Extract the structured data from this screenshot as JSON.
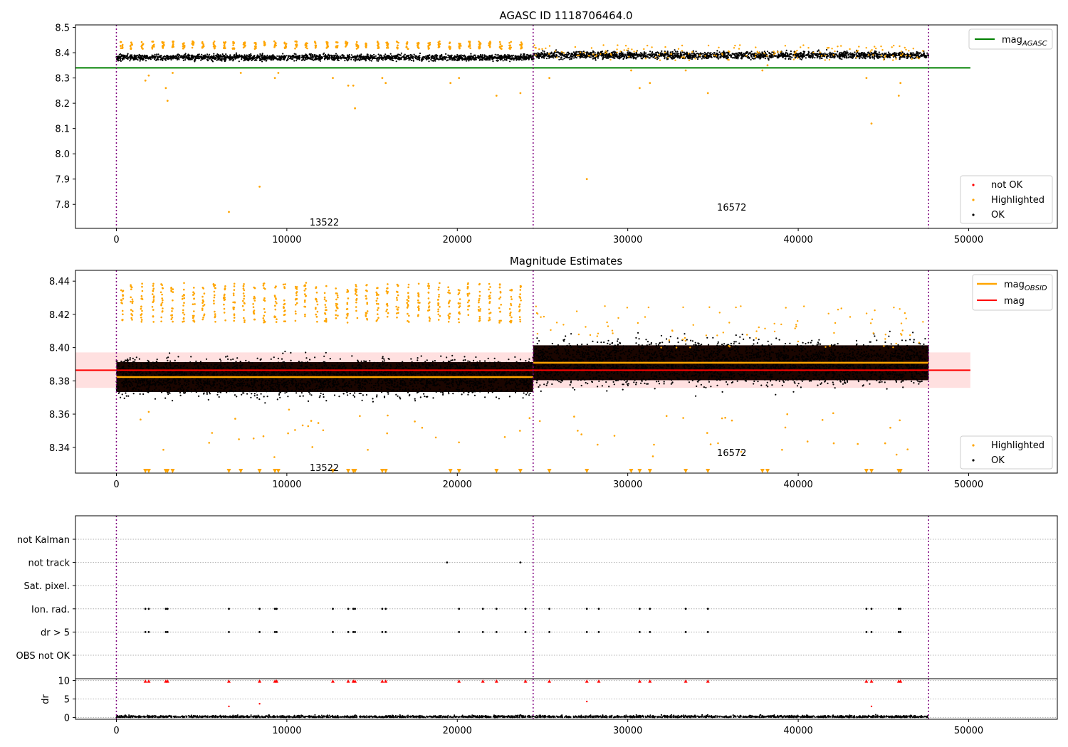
{
  "chart_data": [
    {
      "type": "scatter",
      "title": "AGASC ID 1118706464.0",
      "xlim": [
        -2400,
        55200
      ],
      "ylim": [
        7.705,
        8.51
      ],
      "xticks": [
        0,
        10000,
        20000,
        30000,
        40000,
        50000
      ],
      "yticks": [
        7.8,
        7.9,
        8.0,
        8.1,
        8.2,
        8.3,
        8.4,
        8.5
      ],
      "grid": false,
      "obs_boundaries": [
        0,
        24450,
        47650
      ],
      "obs_labels": [
        {
          "text": "13522",
          "x": 12200,
          "y": 7.73
        },
        {
          "text": "16572",
          "x": 36100,
          "y": 7.79
        }
      ],
      "hlines": [
        {
          "name": "mag_AGASC",
          "y": 8.34,
          "x0": -2400,
          "x1": 50100,
          "color": "#008000"
        }
      ],
      "series": [
        {
          "name": "OK",
          "color": "#000000",
          "bands": [
            {
              "x0": 0,
              "x1": 24450,
              "center": 8.381,
              "halfwidth": 0.017
            },
            {
              "x0": 24450,
              "x1": 47650,
              "center": 8.39,
              "halfwidth": 0.02
            }
          ]
        },
        {
          "name": "Highlighted",
          "color": "#ffa500",
          "top_clusters_y": 8.43,
          "outliers": [
            [
              1700,
              8.29
            ],
            [
              1900,
              8.31
            ],
            [
              2900,
              8.26
            ],
            [
              3000,
              8.21
            ],
            [
              3300,
              8.32
            ],
            [
              6600,
              7.77
            ],
            [
              7300,
              8.32
            ],
            [
              8400,
              7.87
            ],
            [
              9300,
              8.3
            ],
            [
              9500,
              8.32
            ],
            [
              12700,
              8.3
            ],
            [
              13600,
              8.27
            ],
            [
              13900,
              8.27
            ],
            [
              14000,
              8.18
            ],
            [
              15600,
              8.3
            ],
            [
              15800,
              8.28
            ],
            [
              19600,
              8.28
            ],
            [
              20100,
              8.3
            ],
            [
              22300,
              8.23
            ],
            [
              23700,
              8.24
            ],
            [
              25400,
              8.3
            ],
            [
              27600,
              7.9
            ],
            [
              30200,
              8.33
            ],
            [
              30700,
              8.26
            ],
            [
              31300,
              8.28
            ],
            [
              33400,
              8.33
            ],
            [
              34700,
              8.24
            ],
            [
              37900,
              8.33
            ],
            [
              38200,
              8.35
            ],
            [
              44000,
              8.3
            ],
            [
              44300,
              8.12
            ],
            [
              45900,
              8.23
            ],
            [
              46000,
              8.28
            ]
          ]
        },
        {
          "name": "not OK",
          "color": "#ff0000",
          "points": []
        }
      ],
      "legends": [
        {
          "entries": [
            "mag_AGASC"
          ],
          "placement": "upper-right"
        },
        {
          "entries": [
            "not OK",
            "Highlighted",
            "OK"
          ],
          "placement": "lower-right"
        }
      ]
    },
    {
      "type": "scatter",
      "title": "Magnitude Estimates",
      "xlim": [
        -2400,
        55200
      ],
      "ylim": [
        8.3245,
        8.4465
      ],
      "xticks": [
        0,
        10000,
        20000,
        30000,
        40000,
        50000
      ],
      "yticks": [
        8.34,
        8.36,
        8.38,
        8.4,
        8.42,
        8.44
      ],
      "grid": false,
      "obs_boundaries": [
        0,
        24450,
        47650
      ],
      "obs_labels": [
        {
          "text": "13522",
          "x": 12200,
          "y": 8.328
        },
        {
          "text": "16572",
          "x": 36100,
          "y": 8.337
        }
      ],
      "hlines": [
        {
          "name": "mag_OBSID",
          "y": 8.3823,
          "x0": 0,
          "x1": 24450,
          "color": "#ffa500"
        },
        {
          "name": "mag_OBSID",
          "y": 8.3909,
          "x0": 24450,
          "x1": 47650,
          "color": "#ffa500"
        },
        {
          "name": "mag",
          "y": 8.3864,
          "x0": -2400,
          "x1": 50100,
          "color": "#ff0000",
          "band": [
            8.3758,
            8.3971
          ]
        }
      ],
      "series": [
        {
          "name": "OK",
          "color": "#000000",
          "bands": [
            {
              "x0": 0,
              "x1": 24450,
              "center": 8.3823,
              "halfwidth": 0.012
            },
            {
              "x0": 24450,
              "x1": 47650,
              "center": 8.3909,
              "halfwidth": 0.014
            }
          ]
        },
        {
          "name": "Highlighted",
          "color": "#ffa500",
          "upper_range": [
            8.415,
            8.445
          ]
        }
      ],
      "legends": [
        {
          "entries": [
            "mag_OBSID",
            "mag"
          ],
          "placement": "upper-right"
        },
        {
          "entries": [
            "Highlighted",
            "OK"
          ],
          "placement": "lower-right"
        }
      ]
    },
    {
      "type": "scatter",
      "title": "",
      "xlim": [
        -2400,
        55200
      ],
      "xticks": [
        0,
        10000,
        20000,
        30000,
        40000,
        50000
      ],
      "obs_boundaries": [
        0,
        24450,
        47650
      ],
      "flag_rows": [
        "not Kalman",
        "not track",
        "Sat. pixel.",
        "Ion. rad.",
        "dr > 5",
        "OBS not OK"
      ],
      "flag_points": {
        "not track": [
          19400,
          23700
        ],
        "Ion. rad.": [
          1700,
          1900,
          2900,
          3000,
          6600,
          8400,
          9300,
          9400,
          12700,
          13600,
          13900,
          14000,
          15600,
          15800,
          20100,
          21500,
          22300,
          24000,
          25400,
          27600,
          28300,
          30700,
          31300,
          33400,
          34700,
          44000,
          44300,
          45900,
          46000
        ],
        "dr > 5": [
          1700,
          1900,
          2900,
          3000,
          6600,
          8400,
          9300,
          9400,
          12700,
          13600,
          13900,
          14000,
          15600,
          15800,
          20100,
          21500,
          22300,
          24000,
          25400,
          27600,
          28300,
          30700,
          31300,
          33400,
          34700,
          44000,
          44300,
          45900,
          46000
        ]
      },
      "dr_ylabel": "dr",
      "dr_yticks": [
        0,
        5,
        10
      ],
      "dr_ylim": [
        -0.5,
        10.5
      ]
    }
  ],
  "legend_labels": {
    "not_ok": "not OK",
    "highlighted": "Highlighted",
    "ok": "OK",
    "mag_agasc_main": "mag",
    "mag_agasc_sub": "AGASC",
    "mag_obsid_main": "mag",
    "mag_obsid_sub": "OBSID",
    "mag": "mag"
  }
}
